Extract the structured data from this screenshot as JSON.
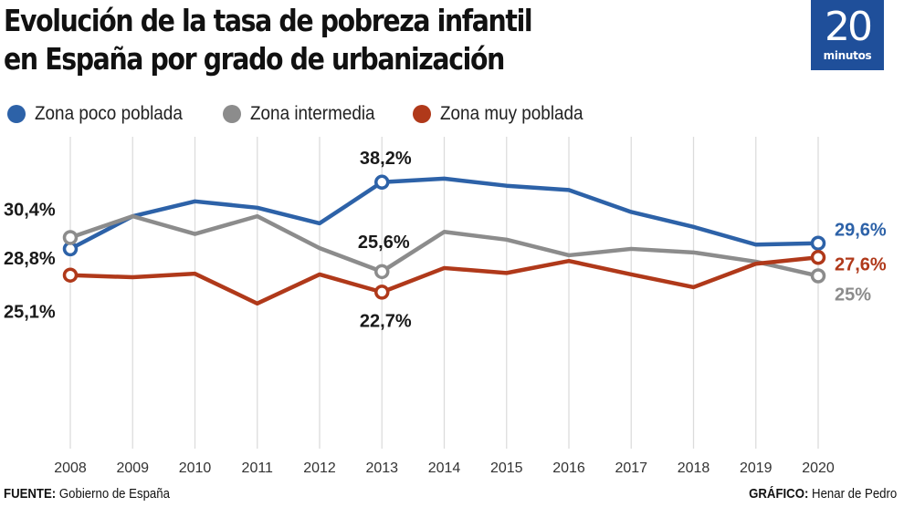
{
  "header": {
    "title_line1": "Evolución de la tasa de pobreza infantil",
    "title_line2": "en España por grado de urbanización"
  },
  "logo": {
    "number": "20",
    "word": "minutos",
    "color": "#1f4f9a"
  },
  "legend": [
    {
      "label": "Zona poco poblada",
      "color": "#2d62a8"
    },
    {
      "label": "Zona intermedia",
      "color": "#8c8c8c"
    },
    {
      "label": "Zona muy poblada",
      "color": "#b0391a"
    }
  ],
  "footer": {
    "source_key": "FUENTE:",
    "source_value": " Gobierno de España",
    "credit_key": "GRÁFICO:",
    "credit_value": " Henar de Pedro"
  },
  "chart_data": {
    "type": "line",
    "title": "Evolución de la tasa de pobreza infantil en España por grado de urbanización",
    "xlabel": "",
    "ylabel": "",
    "ylim": [
      0,
      40
    ],
    "grid": "vertical",
    "legend_position": "top-left",
    "x": [
      "2008",
      "2009",
      "2010",
      "2011",
      "2012",
      "2013",
      "2014",
      "2015",
      "2016",
      "2017",
      "2018",
      "2019",
      "2020"
    ],
    "series": [
      {
        "name": "Zona poco poblada",
        "color": "#2d62a8",
        "values": [
          28.8,
          33.4,
          35.5,
          34.6,
          32.4,
          38.2,
          38.7,
          37.7,
          37.1,
          34.0,
          31.9,
          29.4,
          29.6
        ]
      },
      {
        "name": "Zona intermedia",
        "color": "#8c8c8c",
        "values": [
          30.4,
          33.4,
          30.9,
          33.4,
          28.9,
          25.6,
          31.2,
          30.1,
          27.9,
          28.8,
          28.3,
          27.0,
          25.0
        ]
      },
      {
        "name": "Zona muy poblada",
        "color": "#b0391a",
        "values": [
          25.1,
          24.8,
          25.3,
          21.1,
          25.2,
          22.7,
          26.1,
          25.4,
          27.1,
          25.2,
          23.4,
          26.7,
          27.6
        ]
      }
    ],
    "annotations": [
      {
        "series": 0,
        "index": 0,
        "text": "28,8%",
        "color": "#1a1a1a"
      },
      {
        "series": 1,
        "index": 0,
        "text": "30,4%",
        "color": "#1a1a1a"
      },
      {
        "series": 2,
        "index": 0,
        "text": "25,1%",
        "color": "#1a1a1a"
      },
      {
        "series": 0,
        "index": 5,
        "text": "38,2%",
        "color": "#1a1a1a"
      },
      {
        "series": 1,
        "index": 5,
        "text": "25,6%",
        "color": "#1a1a1a"
      },
      {
        "series": 2,
        "index": 5,
        "text": "22,7%",
        "color": "#1a1a1a"
      },
      {
        "series": 0,
        "index": 12,
        "text": "29,6%",
        "color": "#2d62a8"
      },
      {
        "series": 2,
        "index": 12,
        "text": "27,6%",
        "color": "#b0391a"
      },
      {
        "series": 1,
        "index": 12,
        "text": "25%",
        "color": "#8c8c8c"
      }
    ]
  }
}
